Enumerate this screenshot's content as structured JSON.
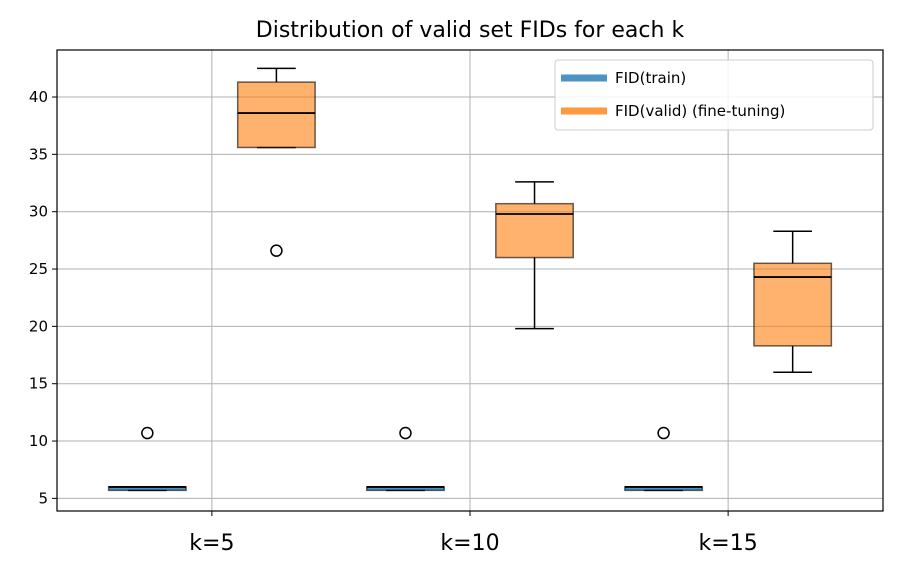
{
  "chart_data": {
    "type": "box",
    "title": "Distribution of valid set FIDs for each k",
    "xlabel": "",
    "ylabel": "",
    "categories": [
      "k=5",
      "k=10",
      "k=15"
    ],
    "ylim": [
      3.9,
      44.1
    ],
    "yticks": [
      5,
      10,
      15,
      20,
      25,
      30,
      35,
      40
    ],
    "grid": true,
    "legend_position": "top-right",
    "series": [
      {
        "name": "FID(train)",
        "color": "#1f77b4",
        "boxes": [
          {
            "whisker_low": 5.7,
            "q1": 5.7,
            "median": 6.0,
            "q3": 6.0,
            "whisker_high": 6.0,
            "outliers": [
              10.7
            ]
          },
          {
            "whisker_low": 5.7,
            "q1": 5.7,
            "median": 6.0,
            "q3": 6.0,
            "whisker_high": 6.0,
            "outliers": [
              10.7
            ]
          },
          {
            "whisker_low": 5.7,
            "q1": 5.7,
            "median": 6.0,
            "q3": 6.0,
            "whisker_high": 6.0,
            "outliers": [
              10.7
            ]
          }
        ]
      },
      {
        "name": "FID(valid) (fine-tuning)",
        "color": "#ff7f0e",
        "boxes": [
          {
            "whisker_low": 35.6,
            "q1": 35.6,
            "median": 38.6,
            "q3": 41.3,
            "whisker_high": 42.5,
            "outliers": [
              26.6
            ]
          },
          {
            "whisker_low": 19.8,
            "q1": 26.0,
            "median": 29.8,
            "q3": 30.7,
            "whisker_high": 32.6,
            "outliers": []
          },
          {
            "whisker_low": 16.0,
            "q1": 18.3,
            "median": 24.3,
            "q3": 25.5,
            "whisker_high": 28.3,
            "outliers": []
          }
        ]
      }
    ]
  }
}
